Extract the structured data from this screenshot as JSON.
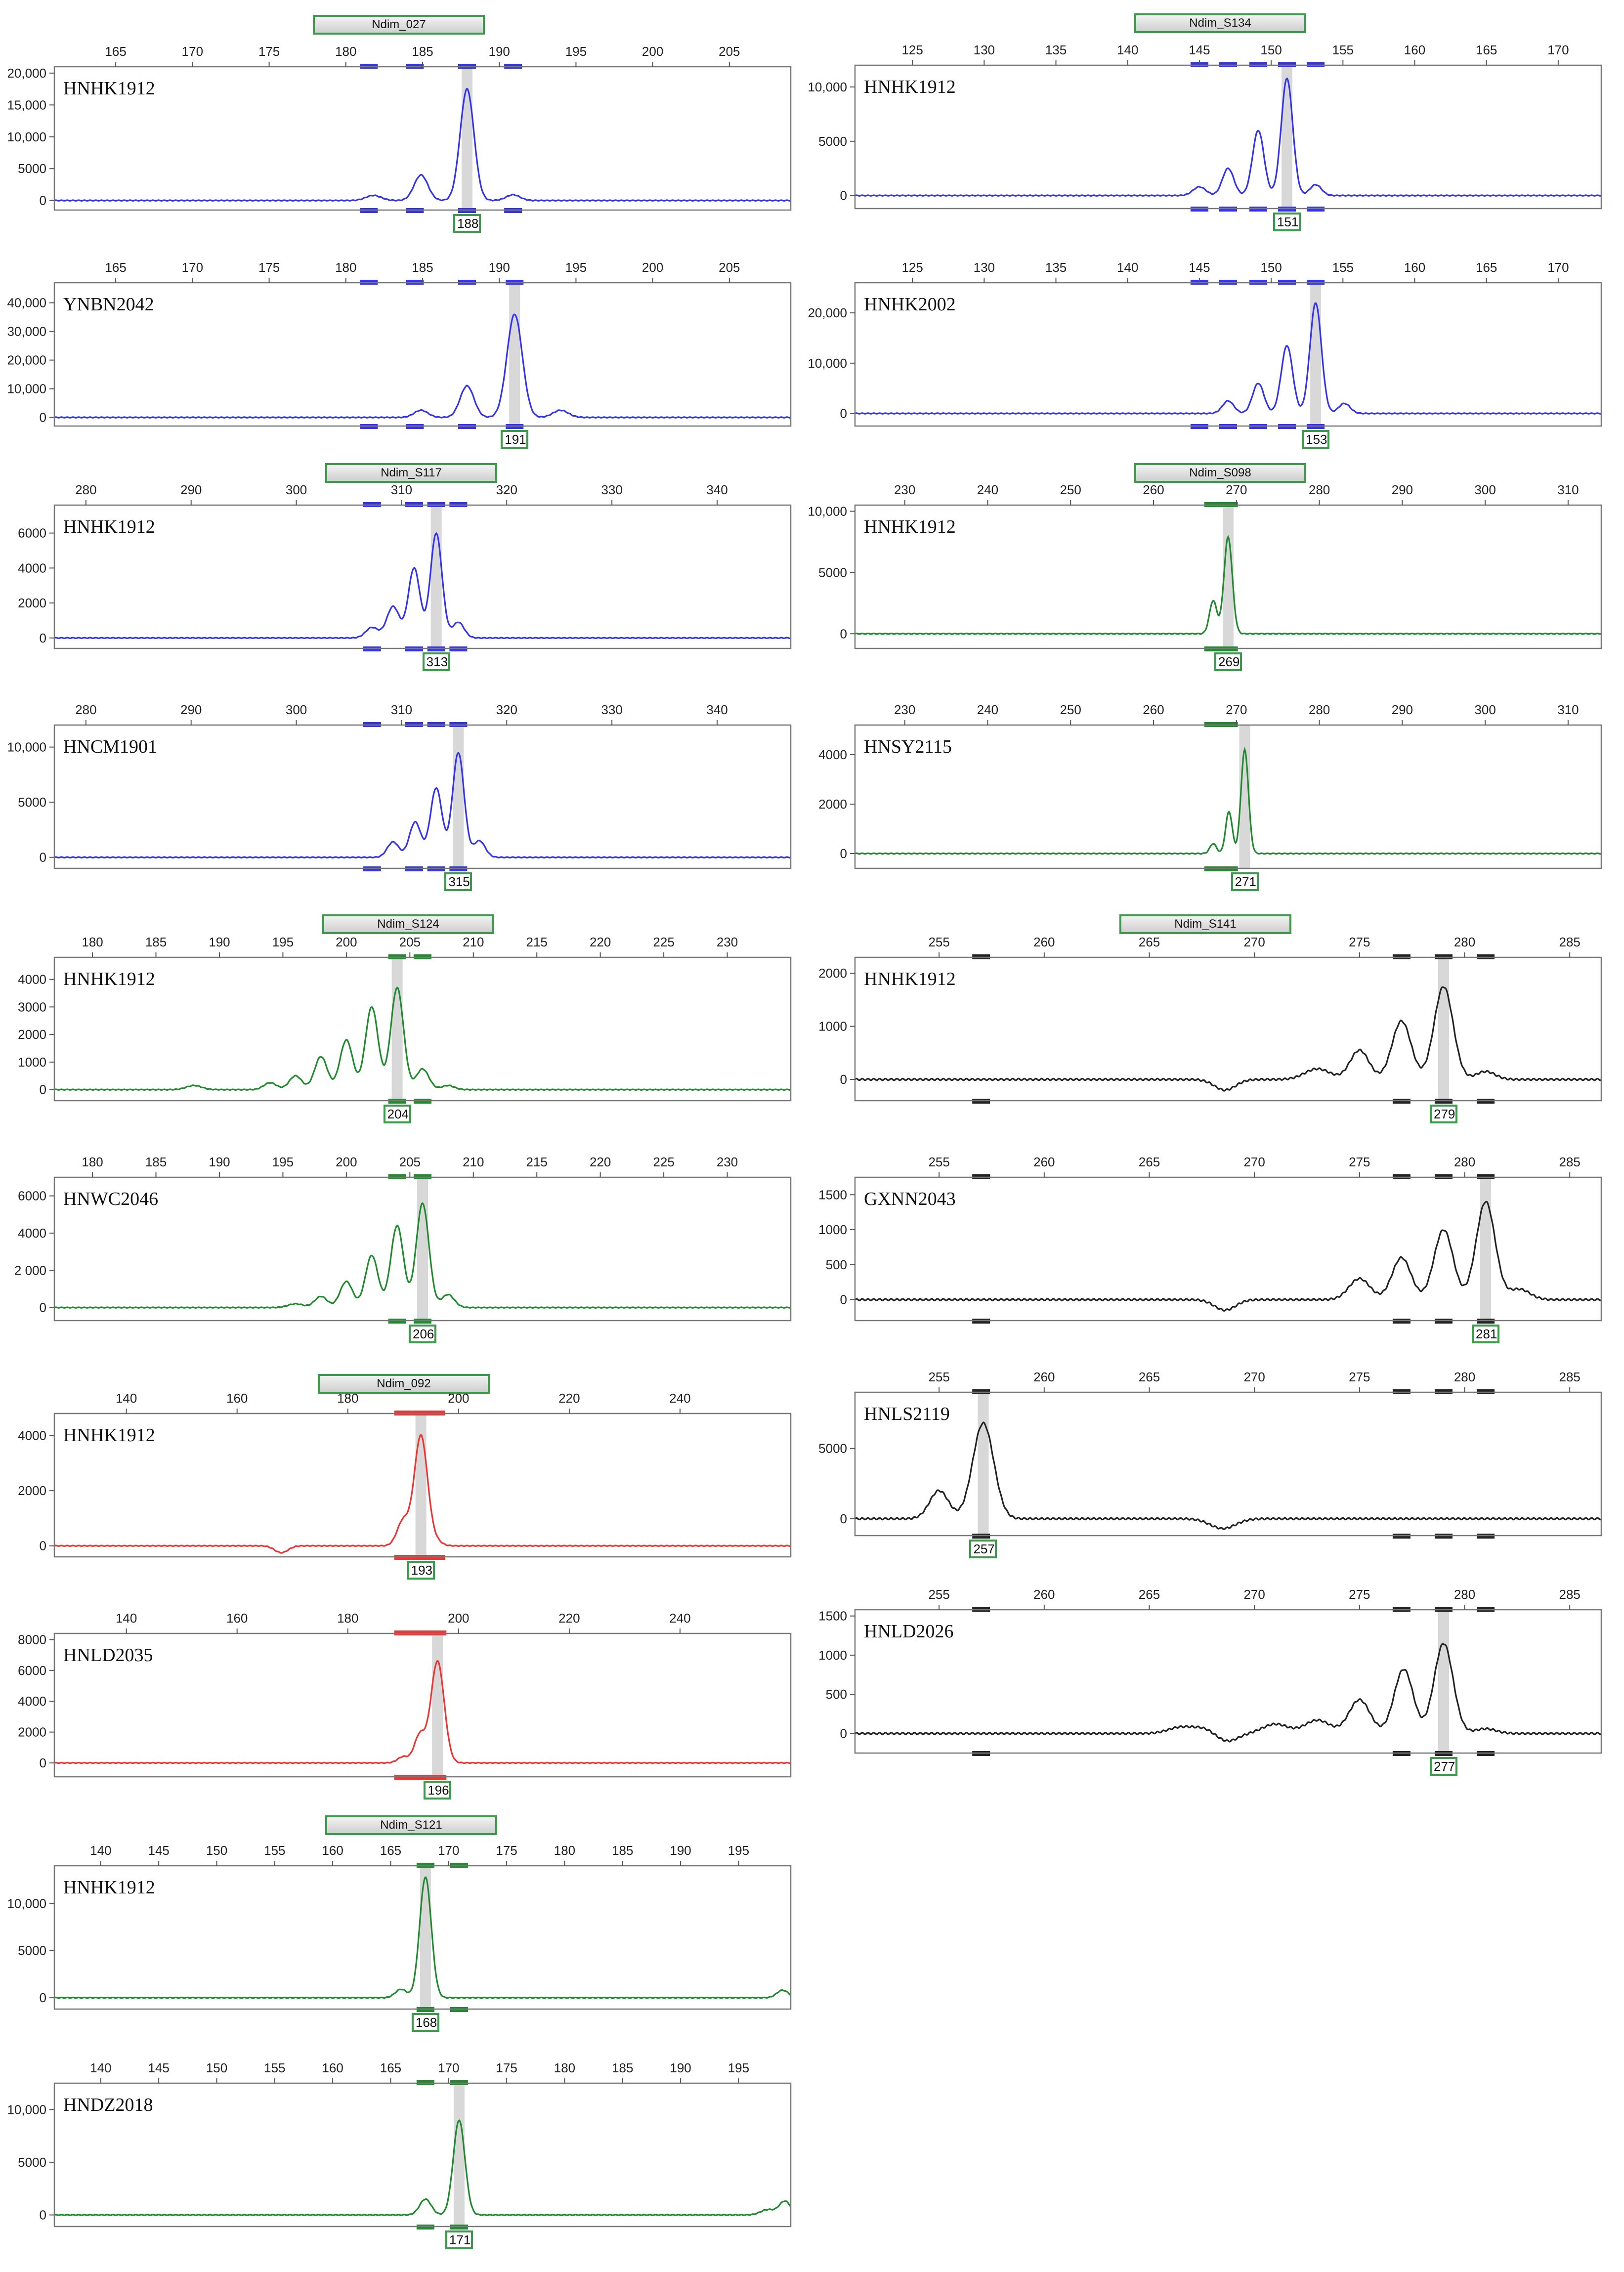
{
  "colors": {
    "blue": "#3333ee",
    "green": "#1f8a2e",
    "red": "#ee3333",
    "black": "#222222",
    "tag_border": "#3a9b4a",
    "highlight": "#d8d8d8"
  },
  "marker_tags": [
    "Ndim_027",
    "Ndim_S134",
    "Ndim_S117",
    "Ndim_S098",
    "Ndim_S124",
    "Ndim_S141",
    "Ndim_092",
    "Ndim_S121"
  ],
  "chart_data": [
    {
      "type": "line",
      "marker": "Ndim_027",
      "sample": "HNHK1912",
      "color": "blue",
      "xlim": [
        161,
        209
      ],
      "xticks": [
        165,
        170,
        175,
        180,
        185,
        190,
        195,
        200,
        205
      ],
      "ylim": [
        -1500,
        21000
      ],
      "yticks": [
        0,
        5000,
        10000,
        15000,
        20000
      ],
      "ytick_labels": [
        "0",
        "5000",
        "10,000",
        "15,000",
        "20,000"
      ],
      "peaks": [
        [
          181.8,
          800,
          0.5
        ],
        [
          184.9,
          4000,
          0.45
        ],
        [
          187.9,
          17500,
          0.45
        ],
        [
          190.9,
          900,
          0.45
        ]
      ],
      "top_bins": [
        181.5,
        184.5,
        187.9,
        190.9
      ],
      "bottom_bins": [
        181.5,
        184.5,
        187.9,
        190.9
      ],
      "call": 188
    },
    {
      "type": "line",
      "marker": "Ndim_S134",
      "sample": "HNHK1912",
      "color": "blue",
      "xlim": [
        121,
        173
      ],
      "xticks": [
        125,
        130,
        135,
        140,
        145,
        150,
        155,
        160,
        165,
        170
      ],
      "ylim": [
        -1200,
        12000
      ],
      "yticks": [
        0,
        5000,
        10000
      ],
      "ytick_labels": [
        "0",
        "5000",
        "10,000"
      ],
      "peaks": [
        [
          145,
          800,
          0.45
        ],
        [
          147,
          2500,
          0.4
        ],
        [
          149.1,
          6000,
          0.4
        ],
        [
          151.1,
          10800,
          0.4
        ],
        [
          153.1,
          1000,
          0.4
        ]
      ],
      "top_bins": [
        145,
        147,
        149.1,
        151.1,
        153.1
      ],
      "bottom_bins": [
        145,
        147,
        149.1,
        151.1,
        153.1
      ],
      "call": 151
    },
    {
      "type": "line",
      "marker": "Ndim_027",
      "sample": "YNBN2042",
      "color": "blue",
      "xlim": [
        161,
        209
      ],
      "xticks": [
        165,
        170,
        175,
        180,
        185,
        190,
        195,
        200,
        205
      ],
      "ylim": [
        -3000,
        47000
      ],
      "yticks": [
        0,
        10000,
        20000,
        30000,
        40000
      ],
      "ytick_labels": [
        "0",
        "10,000",
        "20,000",
        "30,000",
        "40,000"
      ],
      "peaks": [
        [
          184.9,
          2500,
          0.45
        ],
        [
          187.9,
          11000,
          0.45
        ],
        [
          191,
          36000,
          0.5
        ],
        [
          194,
          2500,
          0.5
        ]
      ],
      "top_bins": [
        181.5,
        184.5,
        187.9,
        191
      ],
      "bottom_bins": [
        181.5,
        184.5,
        187.9,
        191
      ],
      "call": 191
    },
    {
      "type": "line",
      "marker": "Ndim_S134",
      "sample": "HNHK2002",
      "color": "blue",
      "xlim": [
        121,
        173
      ],
      "xticks": [
        125,
        130,
        135,
        140,
        145,
        150,
        155,
        160,
        165,
        170
      ],
      "ylim": [
        -2500,
        26000
      ],
      "yticks": [
        0,
        10000,
        20000
      ],
      "ytick_labels": [
        "0",
        "10,000",
        "20,000"
      ],
      "peaks": [
        [
          147,
          2500,
          0.4
        ],
        [
          149.1,
          6000,
          0.4
        ],
        [
          151.1,
          13500,
          0.4
        ],
        [
          153.1,
          22000,
          0.4
        ],
        [
          155.1,
          2000,
          0.4
        ]
      ],
      "top_bins": [
        145,
        147,
        149.1,
        151.1,
        153.1
      ],
      "bottom_bins": [
        145,
        147,
        149.1,
        151.1,
        153.1
      ],
      "call": 153
    },
    {
      "type": "line",
      "marker": "Ndim_S117",
      "sample": "HNHK1912",
      "color": "blue",
      "xlim": [
        277,
        347
      ],
      "xticks": [
        280,
        290,
        300,
        310,
        320,
        330,
        340
      ],
      "ylim": [
        -600,
        7600
      ],
      "yticks": [
        0,
        2000,
        4000,
        6000
      ],
      "ytick_labels": [
        "0",
        "2000",
        "4000",
        "6000"
      ],
      "peaks": [
        [
          307.2,
          600,
          0.6
        ],
        [
          309.2,
          1800,
          0.6
        ],
        [
          311.2,
          4000,
          0.55
        ],
        [
          313.3,
          6000,
          0.55
        ],
        [
          315.4,
          900,
          0.55
        ]
      ],
      "top_bins": [
        307.2,
        311.2,
        313.3,
        315.4
      ],
      "bottom_bins": [
        307.2,
        311.2,
        313.3,
        315.4
      ],
      "call": 313
    },
    {
      "type": "line",
      "marker": "Ndim_S098",
      "sample": "HNHK1912",
      "color": "green",
      "xlim": [
        224,
        314
      ],
      "xticks": [
        230,
        240,
        250,
        260,
        270,
        280,
        290,
        300,
        310
      ],
      "ylim": [
        -1200,
        10500
      ],
      "yticks": [
        0,
        5000,
        10000
      ],
      "ytick_labels": [
        "0",
        "5000",
        "10,000"
      ],
      "peaks": [
        [
          267.2,
          2700,
          0.45
        ],
        [
          269,
          7900,
          0.5
        ]
      ],
      "top_bins": [
        267.2,
        269.1
      ],
      "bottom_bins": [
        267.2,
        269.1
      ],
      "call": 269
    },
    {
      "type": "line",
      "marker": "Ndim_S117",
      "sample": "HNCM1901",
      "color": "blue",
      "xlim": [
        277,
        347
      ],
      "xticks": [
        280,
        290,
        300,
        310,
        320,
        330,
        340
      ],
      "ylim": [
        -1000,
        12000
      ],
      "yticks": [
        0,
        5000,
        10000
      ],
      "ytick_labels": [
        "0",
        "5000",
        "10,000"
      ],
      "peaks": [
        [
          309.2,
          1400,
          0.55
        ],
        [
          311.3,
          3200,
          0.55
        ],
        [
          313.3,
          6300,
          0.55
        ],
        [
          315.4,
          9500,
          0.55
        ],
        [
          317.4,
          1500,
          0.55
        ]
      ],
      "top_bins": [
        307.2,
        311.2,
        313.3,
        315.4
      ],
      "bottom_bins": [
        307.2,
        311.2,
        313.3,
        315.4
      ],
      "call": 315
    },
    {
      "type": "line",
      "marker": "Ndim_S098",
      "sample": "HNSY2115",
      "color": "green",
      "xlim": [
        224,
        314
      ],
      "xticks": [
        230,
        240,
        250,
        260,
        270,
        280,
        290,
        300,
        310
      ],
      "ylim": [
        -600,
        5200
      ],
      "yticks": [
        0,
        2000,
        4000
      ],
      "ytick_labels": [
        "0",
        "2000",
        "4000"
      ],
      "peaks": [
        [
          267.2,
          400,
          0.4
        ],
        [
          269.1,
          1700,
          0.4
        ],
        [
          271,
          4200,
          0.45
        ]
      ],
      "top_bins": [
        267.2,
        269.1
      ],
      "bottom_bins": [
        267.2,
        269.1
      ],
      "call": 271
    },
    {
      "type": "line",
      "marker": "Ndim_S124",
      "sample": "HNHK1912",
      "color": "green",
      "xlim": [
        177,
        235
      ],
      "xticks": [
        180,
        185,
        190,
        195,
        200,
        205,
        210,
        215,
        220,
        225,
        230
      ],
      "ylim": [
        -400,
        4800
      ],
      "yticks": [
        0,
        1000,
        2000,
        3000,
        4000
      ],
      "ytick_labels": [
        "0",
        "1000",
        "2000",
        "3000",
        "4000"
      ],
      "peaks": [
        [
          188,
          150,
          0.6
        ],
        [
          194,
          250,
          0.5
        ],
        [
          196,
          500,
          0.5
        ],
        [
          198,
          1200,
          0.5
        ],
        [
          200,
          1800,
          0.5
        ],
        [
          202,
          3000,
          0.5
        ],
        [
          204,
          3700,
          0.5
        ],
        [
          206,
          750,
          0.5
        ],
        [
          208,
          150,
          0.5
        ]
      ],
      "top_bins": [
        204,
        206
      ],
      "bottom_bins": [
        204,
        206
      ],
      "call": 204
    },
    {
      "type": "line",
      "marker": "Ndim_S141",
      "sample": "HNHK1912",
      "color": "black",
      "xlim": [
        251,
        286.5
      ],
      "xticks": [
        255,
        260,
        265,
        270,
        275,
        280,
        285
      ],
      "ylim": [
        -400,
        2300
      ],
      "yticks": [
        0,
        1000,
        2000
      ],
      "ytick_labels": [
        "0",
        "1000",
        "2000"
      ],
      "peaks": [
        [
          268.6,
          -200,
          0.5
        ],
        [
          273,
          200,
          0.6
        ],
        [
          275,
          550,
          0.45
        ],
        [
          277,
          1100,
          0.45
        ],
        [
          279,
          1750,
          0.45
        ],
        [
          281,
          150,
          0.45
        ]
      ],
      "top_bins": [
        257,
        277,
        279,
        281
      ],
      "bottom_bins": [
        257,
        277,
        279,
        281
      ],
      "call": 279
    },
    {
      "type": "line",
      "marker": "Ndim_S124",
      "sample": "HNWC2046",
      "color": "green",
      "xlim": [
        177,
        235
      ],
      "xticks": [
        180,
        185,
        190,
        195,
        200,
        205,
        210,
        215,
        220,
        225,
        230
      ],
      "ylim": [
        -700,
        7000
      ],
      "yticks": [
        0,
        2000,
        4000,
        6000
      ],
      "ytick_labels": [
        "0",
        "2 000",
        "4000",
        "6000"
      ],
      "peaks": [
        [
          196,
          200,
          0.6
        ],
        [
          198,
          600,
          0.5
        ],
        [
          200,
          1400,
          0.5
        ],
        [
          202,
          2800,
          0.5
        ],
        [
          204,
          4400,
          0.5
        ],
        [
          206,
          5600,
          0.5
        ],
        [
          208,
          700,
          0.5
        ]
      ],
      "top_bins": [
        204,
        206
      ],
      "bottom_bins": [
        204,
        206
      ],
      "call": 206
    },
    {
      "type": "line",
      "marker": "Ndim_S141",
      "sample": "GXNN2043",
      "color": "black",
      "xlim": [
        251,
        286.5
      ],
      "xticks": [
        255,
        260,
        265,
        270,
        275,
        280,
        285
      ],
      "ylim": [
        -300,
        1750
      ],
      "yticks": [
        0,
        500,
        1000,
        1500
      ],
      "ytick_labels": [
        "0",
        "500",
        "1000",
        "1500"
      ],
      "peaks": [
        [
          268.6,
          -150,
          0.5
        ],
        [
          275,
          300,
          0.5
        ],
        [
          277,
          600,
          0.45
        ],
        [
          279,
          1000,
          0.45
        ],
        [
          281,
          1400,
          0.45
        ],
        [
          282.6,
          150,
          0.5
        ]
      ],
      "top_bins": [
        257,
        277,
        279,
        281
      ],
      "bottom_bins": [
        257,
        277,
        279,
        281
      ],
      "call": 281
    },
    {
      "type": "line",
      "marker": "Ndim_092",
      "sample": "HNHK1912",
      "color": "red",
      "xlim": [
        127,
        260
      ],
      "xticks": [
        140,
        160,
        180,
        200,
        220,
        240
      ],
      "ylim": [
        -400,
        4800
      ],
      "yticks": [
        0,
        2000,
        4000
      ],
      "ytick_labels": [
        "0",
        "2000",
        "4000"
      ],
      "peaks": [
        [
          168,
          -250,
          1.2
        ],
        [
          190,
          900,
          1.1
        ],
        [
          193.2,
          4000,
          1.2
        ],
        [
          196,
          150,
          1.0
        ]
      ],
      "top_bins": [
        190,
        193.2,
        196
      ],
      "bottom_bins": [
        190,
        193.2,
        196
      ],
      "call": 193
    },
    {
      "type": "line",
      "marker": "Ndim_S141",
      "sample": "HNLS2119",
      "color": "black",
      "xlim": [
        251,
        286.5
      ],
      "xticks": [
        255,
        260,
        265,
        270,
        275,
        280,
        285
      ],
      "ylim": [
        -1200,
        9000
      ],
      "yticks": [
        0,
        5000
      ],
      "ytick_labels": [
        "0",
        "5000"
      ],
      "peaks": [
        [
          255,
          2000,
          0.45
        ],
        [
          257.1,
          6800,
          0.5
        ],
        [
          268.5,
          -700,
          0.6
        ]
      ],
      "top_bins": [
        257,
        277,
        279,
        281
      ],
      "bottom_bins": [
        257,
        277,
        279,
        281
      ],
      "call": 257
    },
    {
      "type": "line",
      "marker": "Ndim_092",
      "sample": "HNLD2035",
      "color": "red",
      "xlim": [
        127,
        260
      ],
      "xticks": [
        140,
        160,
        180,
        200,
        220,
        240
      ],
      "ylim": [
        -900,
        8400
      ],
      "yticks": [
        0,
        2000,
        4000,
        6000,
        8000
      ],
      "ytick_labels": [
        "0",
        "2000",
        "4000",
        "6000",
        "8000"
      ],
      "peaks": [
        [
          190,
          400,
          1.0
        ],
        [
          193,
          1800,
          1.0
        ],
        [
          196.2,
          6600,
          1.2
        ]
      ],
      "top_bins": [
        190,
        193.2,
        196.2
      ],
      "bottom_bins": [
        190,
        193.2,
        196.2
      ],
      "call": 196
    },
    {
      "type": "line",
      "marker": "Ndim_S141",
      "sample": "HNLD2026",
      "color": "black",
      "xlim": [
        251,
        286.5
      ],
      "xticks": [
        255,
        260,
        265,
        270,
        275,
        280,
        285
      ],
      "ylim": [
        -250,
        1580
      ],
      "yticks": [
        0,
        500,
        1000,
        1500
      ],
      "ytick_labels": [
        "0",
        "500",
        "1000",
        "1500"
      ],
      "peaks": [
        [
          266.5,
          80,
          0.6
        ],
        [
          267.6,
          60,
          0.5
        ],
        [
          268.7,
          -100,
          0.5
        ],
        [
          271,
          120,
          0.6
        ],
        [
          273,
          170,
          0.6
        ],
        [
          275,
          430,
          0.5
        ],
        [
          277.1,
          820,
          0.45
        ],
        [
          279,
          1150,
          0.45
        ],
        [
          281,
          60,
          0.5
        ]
      ],
      "top_bins": [
        257,
        277,
        279,
        281
      ],
      "bottom_bins": [
        257,
        277,
        279,
        281
      ],
      "call": 277
    },
    {
      "type": "line",
      "marker": "Ndim_S121",
      "sample": "HNHK1912",
      "color": "green",
      "xlim": [
        136,
        199.5
      ],
      "xticks": [
        140,
        145,
        150,
        155,
        160,
        165,
        170,
        175,
        180,
        185,
        190,
        195
      ],
      "ylim": [
        -1200,
        14000
      ],
      "yticks": [
        0,
        5000,
        10000
      ],
      "ytick_labels": [
        "0",
        "5000",
        "10,000"
      ],
      "peaks": [
        [
          165.9,
          900,
          0.5
        ],
        [
          168,
          12800,
          0.5
        ],
        [
          198.8,
          800,
          0.5
        ]
      ],
      "top_bins": [
        168,
        170.9
      ],
      "bottom_bins": [
        168,
        170.9
      ],
      "call": 168
    },
    {
      "type": "line",
      "marker": "Ndim_S121",
      "sample": "HNDZ2018",
      "color": "green",
      "xlim": [
        136,
        199.5
      ],
      "xticks": [
        140,
        145,
        150,
        155,
        160,
        165,
        170,
        175,
        180,
        185,
        190,
        195
      ],
      "ylim": [
        -1100,
        12500
      ],
      "yticks": [
        0,
        5000,
        10000
      ],
      "ytick_labels": [
        "0",
        "5000",
        "10,000"
      ],
      "peaks": [
        [
          168,
          1500,
          0.5
        ],
        [
          170.9,
          9000,
          0.5
        ],
        [
          197.5,
          500,
          0.6
        ],
        [
          199,
          1300,
          0.5
        ]
      ],
      "top_bins": [
        168,
        170.9
      ],
      "bottom_bins": [
        168,
        170.9
      ],
      "call": 171
    }
  ]
}
